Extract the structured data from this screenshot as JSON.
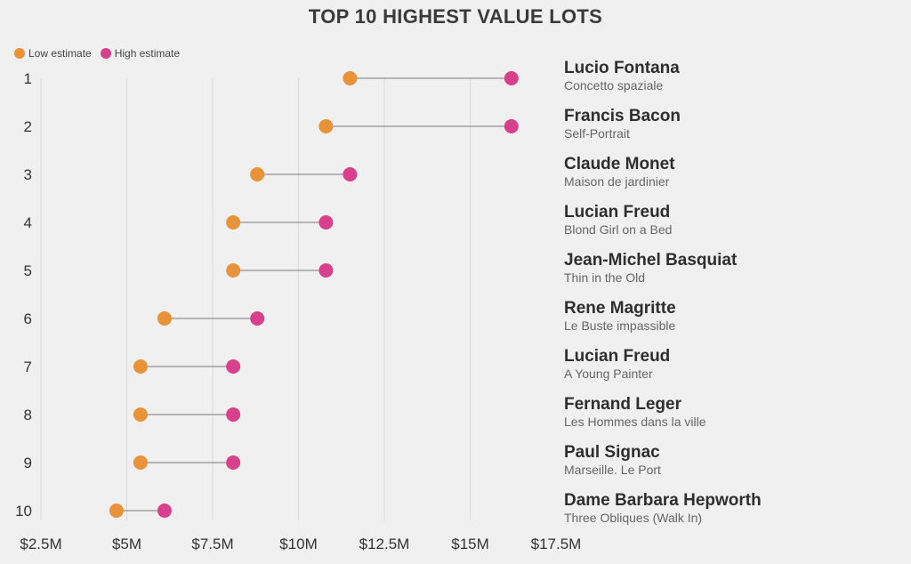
{
  "chart_data": {
    "type": "dumbbell",
    "title": "TOP 10 HIGHEST VALUE LOTS",
    "legend": {
      "position": "top-left",
      "entries": [
        {
          "name": "Low estimate",
          "color": "#e8923a"
        },
        {
          "name": "High estimate",
          "color": "#d83f8c"
        }
      ]
    },
    "x_axis": {
      "min": 2.5,
      "max": 17.5,
      "unit": "$M",
      "ticks": [
        2.5,
        5,
        7.5,
        10,
        12.5,
        15,
        17.5
      ],
      "tick_labels": [
        "$2.5M",
        "$5M",
        "$7.5M",
        "$10M",
        "$12.5M",
        "$15M",
        "$17.5M"
      ],
      "grid": true
    },
    "lots": [
      {
        "rank": "1",
        "artist": "Lucio Fontana",
        "work": "Concetto spaziale",
        "low": 11.5,
        "high": 16.2
      },
      {
        "rank": "2",
        "artist": "Francis Bacon",
        "work": "Self-Portrait",
        "low": 10.8,
        "high": 16.2
      },
      {
        "rank": "3",
        "artist": "Claude Monet",
        "work": "Maison de jardinier",
        "low": 8.8,
        "high": 11.5
      },
      {
        "rank": "4",
        "artist": "Lucian Freud",
        "work": "Blond Girl on a Bed",
        "low": 8.1,
        "high": 10.8
      },
      {
        "rank": "5",
        "artist": "Jean-Michel Basquiat",
        "work": "Thin in the Old",
        "low": 8.1,
        "high": 10.8
      },
      {
        "rank": "6",
        "artist": "Rene Magritte",
        "work": "Le Buste impassible",
        "low": 6.1,
        "high": 8.8
      },
      {
        "rank": "7",
        "artist": "Lucian Freud",
        "work": "A Young Painter",
        "low": 5.4,
        "high": 8.1
      },
      {
        "rank": "8",
        "artist": "Fernand Leger",
        "work": "Les Hommes dans la ville",
        "low": 5.4,
        "high": 8.1
      },
      {
        "rank": "9",
        "artist": "Paul Signac",
        "work": "Marseille. Le Port",
        "low": 5.4,
        "high": 8.1
      },
      {
        "rank": "10",
        "artist": "Dame Barbara Hepworth",
        "work": "Three Obliques (Walk In)",
        "low": 4.7,
        "high": 6.1
      }
    ]
  }
}
